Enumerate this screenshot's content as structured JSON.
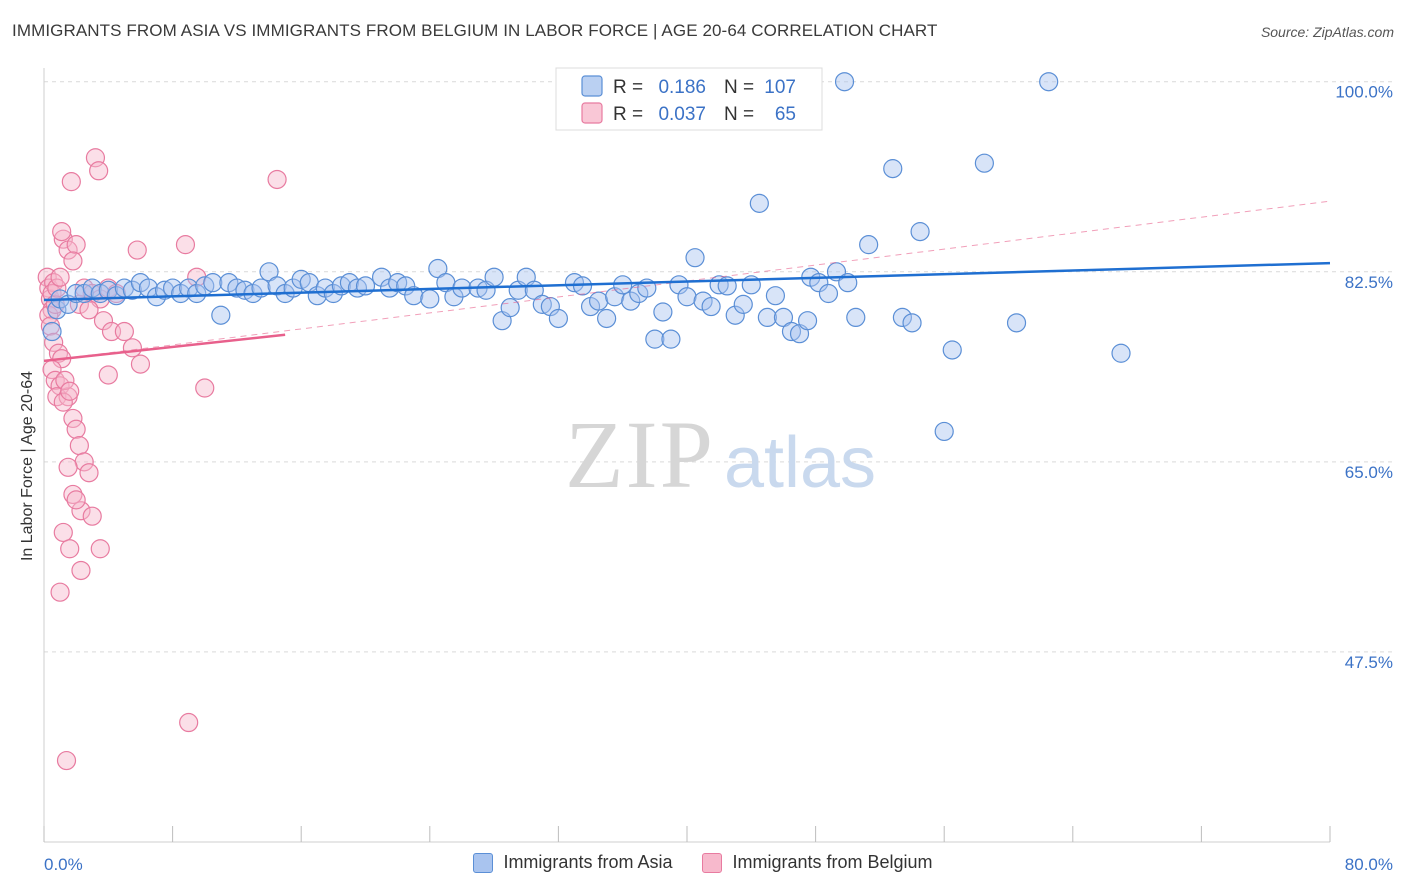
{
  "title": "IMMIGRANTS FROM ASIA VS IMMIGRANTS FROM BELGIUM IN LABOR FORCE | AGE 20-64 CORRELATION CHART",
  "source": "Source: ZipAtlas.com",
  "colors": {
    "asia_fill": "#a9c4ef",
    "asia_stroke": "#5b8fd6",
    "asia_line": "#1f6fd1",
    "belgium_fill": "#f7b9cc",
    "belgium_stroke": "#e87ba0",
    "belgium_line": "#e8608c",
    "axis_text": "#3b72c6",
    "grid": "#d9d9d9"
  },
  "legend": {
    "rows": [
      {
        "r_label": "R =",
        "r_value": "0.186",
        "n_label": "N =",
        "n_value": "107"
      },
      {
        "r_label": "R =",
        "r_value": "0.037",
        "n_label": "N =",
        "n_value": "65"
      }
    ]
  },
  "watermark": {
    "zip": "ZIP",
    "atlas": "atlas"
  },
  "chart_data": {
    "type": "scatter",
    "xlabel": "",
    "ylabel": "In Labor Force | Age 20-64",
    "x_tick_labels": [
      "0.0%",
      "80.0%"
    ],
    "y_tick_labels": [
      "100.0%",
      "82.5%",
      "65.0%",
      "47.5%"
    ],
    "y_ticks": [
      100.0,
      82.5,
      65.0,
      47.5
    ],
    "xlim": [
      0,
      80
    ],
    "ylim": [
      30,
      102
    ],
    "grid": true,
    "series": [
      {
        "name": "Immigrants from Asia",
        "r": 0.186,
        "n": 107,
        "trend": {
          "x": [
            0,
            80
          ],
          "y": [
            79.9,
            83.3
          ]
        },
        "points": [
          [
            0.5,
            77
          ],
          [
            0.8,
            79
          ],
          [
            1,
            80
          ],
          [
            1.5,
            79.5
          ],
          [
            2,
            80.5
          ],
          [
            2.5,
            80.5
          ],
          [
            3,
            81
          ],
          [
            3.5,
            80.5
          ],
          [
            4,
            80.8
          ],
          [
            4.5,
            80.3
          ],
          [
            5,
            81
          ],
          [
            5.5,
            80.8
          ],
          [
            6,
            81.5
          ],
          [
            6.5,
            81
          ],
          [
            7,
            80.2
          ],
          [
            7.5,
            80.8
          ],
          [
            8,
            81
          ],
          [
            8.5,
            80.5
          ],
          [
            9,
            81
          ],
          [
            9.5,
            80.5
          ],
          [
            10,
            81.2
          ],
          [
            10.5,
            81.5
          ],
          [
            11,
            78.5
          ],
          [
            11.5,
            81.5
          ],
          [
            12,
            81
          ],
          [
            12.5,
            80.8
          ],
          [
            13,
            80.5
          ],
          [
            13.5,
            81
          ],
          [
            14,
            82.5
          ],
          [
            14.5,
            81.2
          ],
          [
            15,
            80.5
          ],
          [
            15.5,
            81
          ],
          [
            16,
            81.8
          ],
          [
            16.5,
            81.5
          ],
          [
            17,
            80.3
          ],
          [
            17.5,
            81
          ],
          [
            18,
            80.5
          ],
          [
            18.5,
            81.2
          ],
          [
            19,
            81.5
          ],
          [
            19.5,
            81
          ],
          [
            20,
            81.2
          ],
          [
            21,
            82
          ],
          [
            21.5,
            81
          ],
          [
            22,
            81.5
          ],
          [
            22.5,
            81.2
          ],
          [
            23,
            80.3
          ],
          [
            24,
            80
          ],
          [
            24.5,
            82.8
          ],
          [
            25,
            81.5
          ],
          [
            25.5,
            80.2
          ],
          [
            26,
            81
          ],
          [
            27,
            81
          ],
          [
            27.5,
            80.8
          ],
          [
            28,
            82
          ],
          [
            28.5,
            78
          ],
          [
            29,
            79.2
          ],
          [
            29.5,
            80.8
          ],
          [
            30,
            82
          ],
          [
            30.5,
            80.8
          ],
          [
            31,
            79.5
          ],
          [
            31.5,
            79.3
          ],
          [
            32,
            78.2
          ],
          [
            33,
            81.5
          ],
          [
            33.5,
            81.2
          ],
          [
            34,
            79.3
          ],
          [
            34.5,
            79.8
          ],
          [
            35,
            78.2
          ],
          [
            35.5,
            80.2
          ],
          [
            36,
            81.3
          ],
          [
            36.5,
            79.8
          ],
          [
            37,
            80.5
          ],
          [
            37.5,
            81
          ],
          [
            38,
            76.3
          ],
          [
            38.5,
            78.8
          ],
          [
            39,
            76.3
          ],
          [
            39.5,
            81.3
          ],
          [
            40,
            80.2
          ],
          [
            40.5,
            83.8
          ],
          [
            41,
            79.8
          ],
          [
            41.5,
            79.3
          ],
          [
            42,
            81.3
          ],
          [
            42.5,
            81.2
          ],
          [
            43,
            78.5
          ],
          [
            43.5,
            79.5
          ],
          [
            44,
            81.3
          ],
          [
            44.5,
            88.8
          ],
          [
            45,
            78.3
          ],
          [
            45.5,
            80.3
          ],
          [
            46,
            78.3
          ],
          [
            46.5,
            77
          ],
          [
            47,
            76.8
          ],
          [
            47.5,
            78
          ],
          [
            47.7,
            82
          ],
          [
            48.2,
            81.5
          ],
          [
            48.8,
            80.5
          ],
          [
            49.3,
            82.5
          ],
          [
            50,
            81.5
          ],
          [
            49.8,
            100
          ],
          [
            50.5,
            78.3
          ],
          [
            51.3,
            85
          ],
          [
            52.8,
            92
          ],
          [
            53.4,
            78.3
          ],
          [
            54,
            77.8
          ],
          [
            54.5,
            86.2
          ],
          [
            56.5,
            75.3
          ],
          [
            56,
            67.8
          ],
          [
            58.5,
            92.5
          ],
          [
            60.5,
            77.8
          ],
          [
            62.5,
            100
          ],
          [
            67,
            75
          ]
        ]
      },
      {
        "name": "Immigrants from Belgium",
        "r": 0.037,
        "n": 65,
        "trend": {
          "x": [
            0,
            15
          ],
          "y": [
            74.3,
            76.7
          ]
        },
        "trend_extended": {
          "x": [
            0,
            80
          ],
          "y": [
            74.3,
            89
          ]
        },
        "points": [
          [
            0.2,
            82
          ],
          [
            0.3,
            81
          ],
          [
            0.4,
            80
          ],
          [
            0.5,
            79
          ],
          [
            0.6,
            81.5
          ],
          [
            0.3,
            78.5
          ],
          [
            0.5,
            80.5
          ],
          [
            0.7,
            79.5
          ],
          [
            0.8,
            81
          ],
          [
            1,
            82
          ],
          [
            0.4,
            77.5
          ],
          [
            0.6,
            76
          ],
          [
            0.9,
            75
          ],
          [
            1.1,
            74.5
          ],
          [
            0.5,
            73.5
          ],
          [
            0.7,
            72.5
          ],
          [
            1,
            72
          ],
          [
            0.8,
            71
          ],
          [
            1.5,
            71
          ],
          [
            1.3,
            72.5
          ],
          [
            1.2,
            70.5
          ],
          [
            1.6,
            71.5
          ],
          [
            1.8,
            69
          ],
          [
            2,
            68
          ],
          [
            2.2,
            66.5
          ],
          [
            2.5,
            65
          ],
          [
            1.5,
            64.5
          ],
          [
            2.8,
            64
          ],
          [
            1.8,
            62
          ],
          [
            2.3,
            60.5
          ],
          [
            2,
            61.5
          ],
          [
            3,
            60
          ],
          [
            1.2,
            58.5
          ],
          [
            1.6,
            57
          ],
          [
            2.3,
            55
          ],
          [
            3.5,
            57
          ],
          [
            1,
            53
          ],
          [
            1.2,
            85.5
          ],
          [
            1.5,
            84.5
          ],
          [
            2,
            85
          ],
          [
            1.8,
            83.5
          ],
          [
            1.1,
            86.2
          ],
          [
            2.5,
            81
          ],
          [
            3,
            80.5
          ],
          [
            2.2,
            79.5
          ],
          [
            3.5,
            80
          ],
          [
            2.8,
            79
          ],
          [
            4,
            81
          ],
          [
            4.5,
            80.5
          ],
          [
            3.7,
            78
          ],
          [
            4.2,
            77
          ],
          [
            5,
            77
          ],
          [
            5.5,
            75.5
          ],
          [
            6,
            74
          ],
          [
            4,
            73
          ],
          [
            1.7,
            90.8
          ],
          [
            3.2,
            93
          ],
          [
            3.4,
            91.8
          ],
          [
            14.5,
            91
          ],
          [
            8.8,
            85
          ],
          [
            10,
            71.8
          ],
          [
            9.5,
            82
          ],
          [
            5.8,
            84.5
          ],
          [
            9,
            41
          ],
          [
            1.4,
            37.5
          ]
        ]
      }
    ]
  }
}
